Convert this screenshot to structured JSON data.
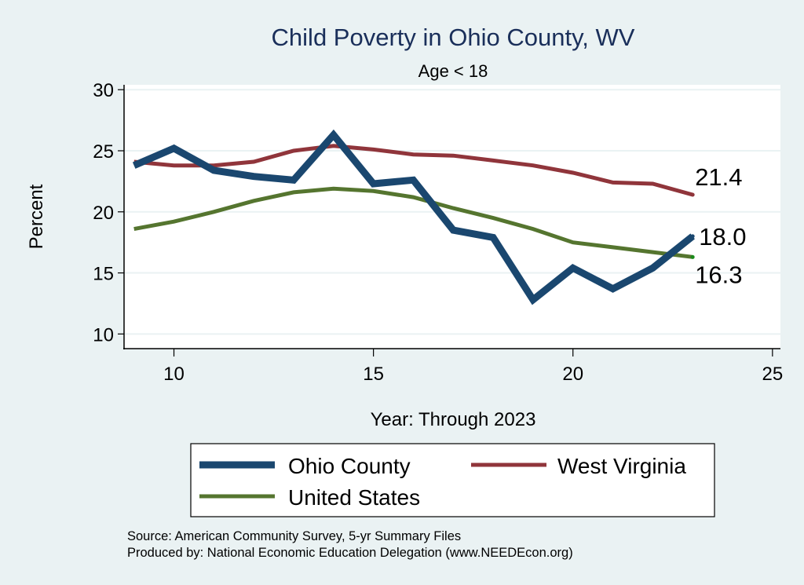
{
  "chart_data": {
    "type": "line",
    "title": "Child Poverty in Ohio County, WV",
    "subtitle": "Age < 18",
    "xlabel": "Year: Through 2023",
    "ylabel": "Percent",
    "xlim": [
      8.75,
      25.2
    ],
    "ylim": [
      8.8,
      30.4
    ],
    "xticks": [
      10,
      15,
      20,
      25
    ],
    "yticks": [
      10,
      15,
      20,
      25,
      30
    ],
    "grid": "horizontal",
    "x": [
      9,
      10,
      11,
      12,
      13,
      14,
      15,
      16,
      17,
      18,
      19,
      20,
      21,
      22,
      23
    ],
    "series": [
      {
        "name": "Ohio County",
        "color": "#1a476f",
        "values": [
          23.8,
          25.2,
          23.4,
          22.9,
          22.6,
          26.3,
          22.3,
          22.6,
          18.5,
          17.9,
          12.8,
          15.4,
          13.7,
          15.4,
          18.0
        ],
        "end_label": "18.0"
      },
      {
        "name": "West Virginia",
        "color": "#90353b",
        "values": [
          24.1,
          23.8,
          23.8,
          24.1,
          25.0,
          25.4,
          25.1,
          24.7,
          24.6,
          24.2,
          23.8,
          23.2,
          22.4,
          22.3,
          21.4
        ],
        "end_label": "21.4"
      },
      {
        "name": "United States",
        "color": "#55752f",
        "values": [
          18.6,
          19.2,
          20.0,
          20.9,
          21.6,
          21.9,
          21.7,
          21.2,
          20.3,
          19.5,
          18.6,
          17.5,
          17.1,
          16.7,
          16.3
        ],
        "end_label": "16.3"
      }
    ],
    "legend": {
      "placement": "bottom",
      "entries": [
        "Ohio County",
        "West Virginia",
        "United States"
      ]
    },
    "notes": [
      "Source: American Community Survey, 5-yr Summary Files",
      "Produced by: National Economic Education Delegation (www.NEEDEcon.org)"
    ]
  }
}
